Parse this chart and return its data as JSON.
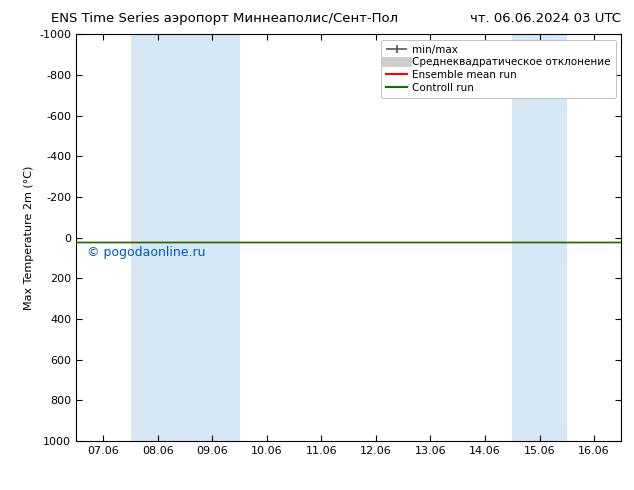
{
  "title": "ENS Time Series аэропорт Миннеаполис/Сент-Пол",
  "title_right": "чт. 06.06.2024 03 UTC",
  "ylabel": "Max Temperature 2m (°C)",
  "x_labels": [
    "07.06",
    "08.06",
    "09.06",
    "10.06",
    "11.06",
    "12.06",
    "13.06",
    "14.06",
    "15.06",
    "16.06"
  ],
  "x_ticks": [
    1,
    2,
    3,
    4,
    5,
    6,
    7,
    8,
    9,
    10
  ],
  "x_min": 0.5,
  "x_max": 10.5,
  "y_min": -1000,
  "y_max": 1000,
  "y_ticks": [
    -1000,
    -800,
    -600,
    -400,
    -200,
    0,
    200,
    400,
    600,
    800,
    1000
  ],
  "shaded_regions": [
    {
      "x_start": 1.5,
      "x_end": 3.5
    },
    {
      "x_start": 8.5,
      "x_end": 9.5
    }
  ],
  "shaded_color": "#d6e8f5",
  "line_y": 20,
  "ensemble_mean_color": "#ff0000",
  "control_run_color": "#007700",
  "watermark": "© pogodaonline.ru",
  "watermark_color": "#0055cc",
  "bg_color": "#ffffff"
}
